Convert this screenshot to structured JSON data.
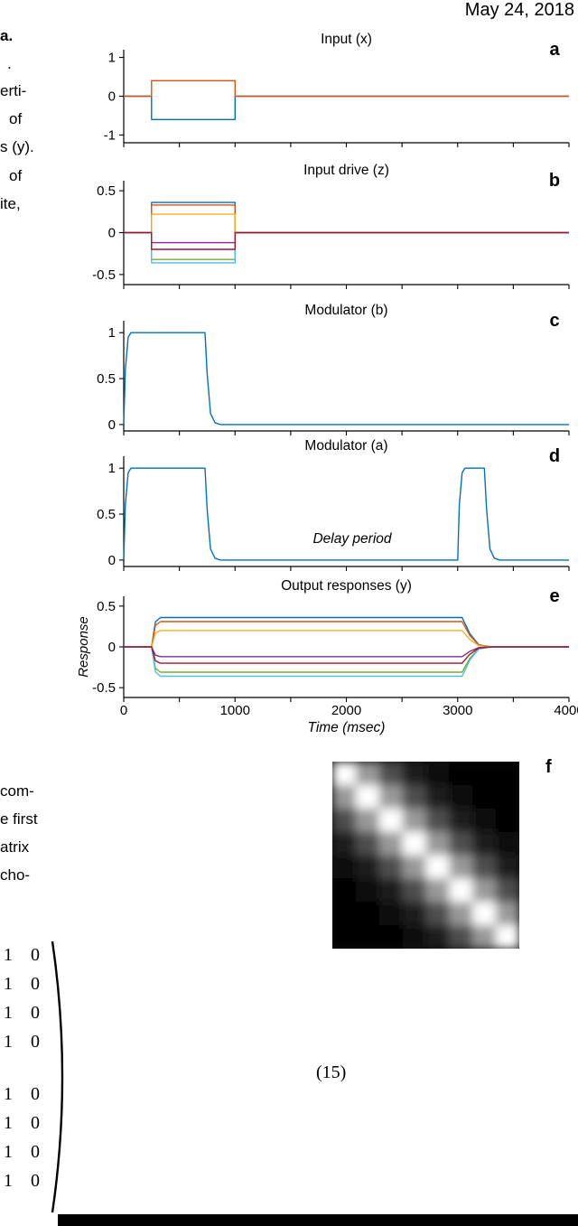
{
  "header": {
    "date": "May 24, 2018"
  },
  "caption_fragments": [
    "a.",
    ".",
    "erti-",
    "of",
    "s (y).",
    "of",
    "ite,"
  ],
  "body_fragments": [
    "com-",
    "e first",
    "atrix",
    "cho-"
  ],
  "equation": {
    "number": "(15)",
    "matrix_rows": [
      "1 0",
      "1 0",
      "1 0",
      "1 0",
      "1 0",
      "1 0",
      "1 0",
      "1 0"
    ]
  },
  "recall_image": {
    "label": "f",
    "size": 8,
    "profile": [
      1.0,
      0.6,
      0.3,
      0.1,
      0.03,
      0.0,
      0.0,
      0.0
    ]
  },
  "chart_data": {
    "type": "line",
    "x_range": [
      0,
      4000
    ],
    "xlabel": "Time (msec)",
    "xticks": [
      0,
      1000,
      2000,
      3000,
      4000
    ],
    "panels": [
      {
        "id": "a",
        "letter": "a",
        "title": "Input (x)",
        "ylim": [
          -1.2,
          1.2
        ],
        "yticks": [
          {
            "v": 1,
            "label": "1"
          },
          {
            "v": 0,
            "label": "0"
          },
          {
            "v": -1,
            "label": "-1"
          }
        ],
        "series": [
          {
            "name": "x-negative",
            "color": "#0072bd",
            "shape": "step",
            "level": -0.6,
            "t_on": 250,
            "t_off": 1000
          },
          {
            "name": "x-positive",
            "color": "#d95319",
            "shape": "step",
            "level": 0.4,
            "t_on": 250,
            "t_off": 1000
          }
        ]
      },
      {
        "id": "b",
        "letter": "b",
        "title": "Input drive (z)",
        "ylim": [
          -0.62,
          0.62
        ],
        "yticks": [
          {
            "v": 0.5,
            "label": "0.5"
          },
          {
            "v": 0,
            "label": "0"
          },
          {
            "v": -0.5,
            "label": "-0.5"
          }
        ],
        "series": [
          {
            "name": "z1",
            "color": "#0072bd",
            "shape": "step",
            "level": 0.36,
            "t_on": 250,
            "t_off": 1000
          },
          {
            "name": "z2",
            "color": "#d95319",
            "shape": "step",
            "level": 0.33,
            "t_on": 250,
            "t_off": 1000
          },
          {
            "name": "z3",
            "color": "#edb120",
            "shape": "step",
            "level": 0.22,
            "t_on": 250,
            "t_off": 1000
          },
          {
            "name": "z4",
            "color": "#7e2f8e",
            "shape": "step",
            "level": -0.12,
            "t_on": 250,
            "t_off": 1000
          },
          {
            "name": "z5",
            "color": "#77ac30",
            "shape": "step",
            "level": -0.32,
            "t_on": 250,
            "t_off": 1000
          },
          {
            "name": "z6",
            "color": "#4dbeee",
            "shape": "step",
            "level": -0.36,
            "t_on": 250,
            "t_off": 1000
          },
          {
            "name": "z7",
            "color": "#a2142f",
            "shape": "step",
            "level": -0.2,
            "t_on": 250,
            "t_off": 1000
          }
        ]
      },
      {
        "id": "c",
        "letter": "c",
        "title": "Modulator (b)",
        "ylim": [
          -0.07,
          1.13
        ],
        "yticks": [
          {
            "v": 1,
            "label": "1"
          },
          {
            "v": 0.5,
            "label": "0.5"
          },
          {
            "v": 0,
            "label": "0"
          }
        ],
        "series": [
          {
            "name": "modulator-b",
            "color": "#0072bd",
            "shape": "pulse",
            "pulses": [
              [
                0,
                730
              ]
            ]
          }
        ]
      },
      {
        "id": "d",
        "letter": "d",
        "title": "Modulator (a)",
        "ylim": [
          -0.07,
          1.13
        ],
        "yticks": [
          {
            "v": 1,
            "label": "1"
          },
          {
            "v": 0.5,
            "label": "0.5"
          },
          {
            "v": 0,
            "label": "0"
          }
        ],
        "annotation": "Delay period",
        "series": [
          {
            "name": "modulator-a",
            "color": "#0072bd",
            "shape": "pulse",
            "pulses": [
              [
                0,
                730
              ],
              [
                3000,
                3240
              ]
            ]
          }
        ]
      },
      {
        "id": "e",
        "letter": "e",
        "title": "Output responses (y)",
        "ylabel": "Response",
        "show_x_labels": true,
        "ylim": [
          -0.62,
          0.62
        ],
        "yticks": [
          {
            "v": 0.5,
            "label": "0.5"
          },
          {
            "v": 0,
            "label": "0"
          },
          {
            "v": -0.5,
            "label": "-0.5"
          }
        ],
        "series": [
          {
            "name": "y1",
            "color": "#0072bd",
            "shape": "sustained",
            "level": 0.36,
            "t_on": 250,
            "t_off": 3040
          },
          {
            "name": "y2",
            "color": "#d95319",
            "shape": "sustained",
            "level": 0.31,
            "t_on": 250,
            "t_off": 3040
          },
          {
            "name": "y3",
            "color": "#edb120",
            "shape": "sustained",
            "level": 0.2,
            "t_on": 250,
            "t_off": 3040
          },
          {
            "name": "y4",
            "color": "#7e2f8e",
            "shape": "sustained",
            "level": -0.12,
            "t_on": 250,
            "t_off": 3040
          },
          {
            "name": "y5",
            "color": "#77ac30",
            "shape": "sustained",
            "level": -0.31,
            "t_on": 250,
            "t_off": 3040
          },
          {
            "name": "y6",
            "color": "#4dbeee",
            "shape": "sustained",
            "level": -0.36,
            "t_on": 250,
            "t_off": 3040
          },
          {
            "name": "y7",
            "color": "#a2142f",
            "shape": "sustained",
            "level": -0.2,
            "t_on": 250,
            "t_off": 3040
          }
        ]
      }
    ]
  }
}
